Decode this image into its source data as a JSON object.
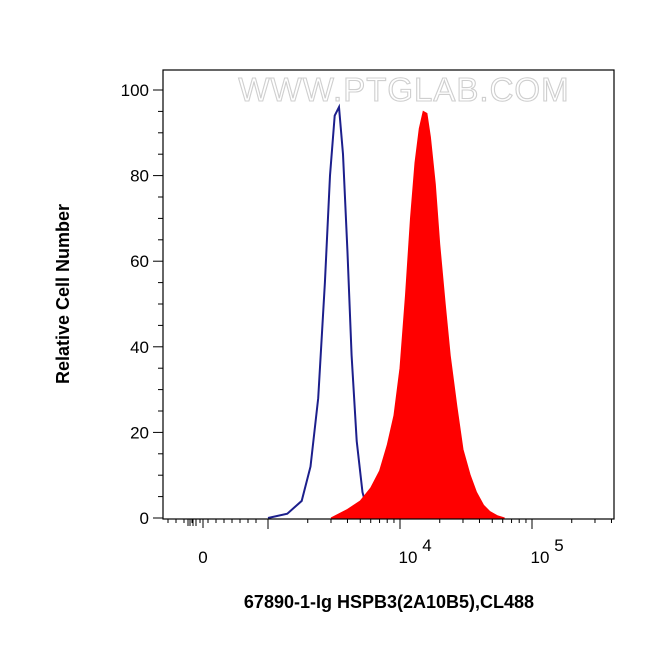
{
  "chart_data": {
    "type": "area",
    "xlabel": "67890-1-Ig HSPB3(2A10B5),CL488",
    "ylabel": "Relative Cell Number",
    "watermark": "WWW.PTGLAB.COM",
    "x_scale": "biexponential",
    "xlim": [
      -150,
      300000
    ],
    "ylim": [
      0,
      100
    ],
    "x_ticks": [
      {
        "value": 0,
        "label": "0",
        "exp": ""
      },
      {
        "value": 10000,
        "label": "10",
        "exp": "4"
      },
      {
        "value": 100000,
        "label": "10",
        "exp": "5"
      }
    ],
    "y_ticks": [
      {
        "value": 0,
        "label": "0"
      },
      {
        "value": 20,
        "label": "20"
      },
      {
        "value": 40,
        "label": "40"
      },
      {
        "value": 60,
        "label": "60"
      },
      {
        "value": 80,
        "label": "80"
      },
      {
        "value": 100,
        "label": "100"
      }
    ],
    "series": [
      {
        "style": "line",
        "color": "#1c1f8c",
        "x": [
          1000,
          1400,
          1800,
          2100,
          2400,
          2700,
          2950,
          3200,
          3450,
          3700,
          4000,
          4300,
          4700,
          5200,
          5700,
          6400
        ],
        "y": [
          0,
          1,
          4,
          12,
          28,
          55,
          80,
          94,
          96,
          85,
          62,
          38,
          18,
          6,
          1.5,
          0
        ]
      },
      {
        "style": "filled",
        "color": "#ff0000",
        "x": [
          3000,
          4000,
          5000,
          6000,
          7000,
          8000,
          9000,
          10000,
          11000,
          12000,
          13000,
          14000,
          15000,
          16000,
          17000,
          18500,
          20000,
          22000,
          24000,
          27000,
          30000,
          34000,
          38000,
          43000,
          48000,
          55000,
          62000
        ],
        "y": [
          0,
          2,
          4,
          7,
          11,
          17,
          24,
          35,
          52,
          70,
          83,
          91,
          95,
          94.5,
          89,
          78,
          64,
          50,
          38,
          26,
          16,
          10,
          6,
          3,
          1.5,
          0.5,
          0
        ]
      }
    ]
  }
}
